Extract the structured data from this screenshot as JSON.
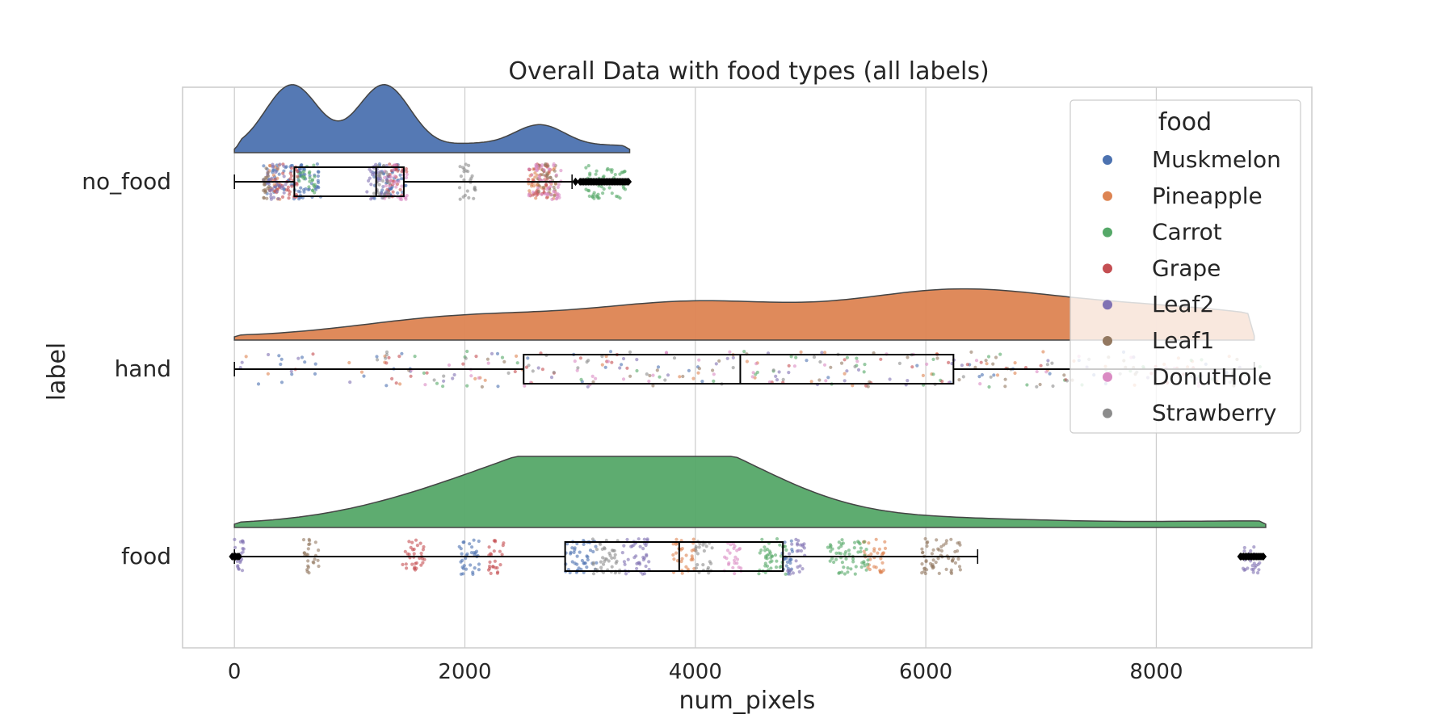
{
  "chart_data": {
    "type": "raincloud",
    "title": "Overall Data with food types (all labels)",
    "xlabel": "num_pixels",
    "ylabel": "label",
    "xlim": [
      -450,
      9350
    ],
    "xticks": [
      0,
      2000,
      4000,
      6000,
      8000
    ],
    "xtick_labels": [
      "0",
      "2000",
      "4000",
      "6000",
      "8000"
    ],
    "categories": [
      "no_food",
      "hand",
      "food"
    ],
    "grid": "vertical",
    "legend": {
      "title": "food",
      "placement": "top-right",
      "entries": [
        {
          "name": "Muskmelon",
          "color": "#4c72b0"
        },
        {
          "name": "Pineapple",
          "color": "#dd8452"
        },
        {
          "name": "Carrot",
          "color": "#55a868"
        },
        {
          "name": "Grape",
          "color": "#c44e52"
        },
        {
          "name": "Leaf2",
          "color": "#8172b3"
        },
        {
          "name": "Leaf1",
          "color": "#937860"
        },
        {
          "name": "DonutHole",
          "color": "#da8bc3"
        },
        {
          "name": "Strawberry",
          "color": "#8c8c8c"
        }
      ]
    },
    "cloud_colors": {
      "no_food": "#4c72b0",
      "hand": "#dd8452",
      "food": "#55a868"
    },
    "density_peaks": {
      "no_food": [
        [
          500,
          1.0
        ],
        [
          1300,
          1.0
        ],
        [
          2050,
          0.08
        ],
        [
          2650,
          0.38
        ],
        [
          3300,
          0.06
        ]
      ],
      "hand": [
        [
          2000,
          0.3
        ],
        [
          4000,
          0.5
        ],
        [
          6200,
          0.65
        ],
        [
          7800,
          0.3
        ],
        [
          8900,
          0.2
        ]
      ],
      "food": [
        [
          2100,
          0.45
        ],
        [
          3300,
          0.72
        ],
        [
          3950,
          0.72
        ],
        [
          6300,
          0.08
        ],
        [
          8900,
          0.05
        ]
      ]
    },
    "boxes": [
      {
        "label": "no_food",
        "whisker_low": 0,
        "q1": 520,
        "median": 1230,
        "q3": 1470,
        "whisker_high": 2930,
        "outlier_ranges": [
          [
            2960,
            2960
          ],
          [
            3000,
            3420
          ]
        ]
      },
      {
        "label": "hand",
        "whisker_low": 0,
        "q1": 2510,
        "median": 4390,
        "q3": 6240,
        "whisker_high": 8850,
        "outlier_ranges": []
      },
      {
        "label": "food",
        "whisker_low": 0,
        "q1": 2870,
        "median": 3860,
        "q3": 4760,
        "whisker_high": 6450,
        "outlier_ranges": [
          [
            -20,
            40
          ],
          [
            8730,
            8930
          ]
        ]
      }
    ],
    "point_clusters": [
      {
        "label": "no_food",
        "food": "Muskmelon",
        "ranges": [
          [
            250,
            600
          ],
          [
            550,
            750
          ],
          [
            1200,
            1500
          ]
        ]
      },
      {
        "label": "no_food",
        "food": "Pineapple",
        "ranges": [
          [
            300,
            400
          ],
          [
            2550,
            2800
          ]
        ]
      },
      {
        "label": "no_food",
        "food": "Carrot",
        "ranges": [
          [
            550,
            700
          ],
          [
            3050,
            3400
          ]
        ]
      },
      {
        "label": "no_food",
        "food": "Grape",
        "ranges": [
          [
            350,
            550
          ],
          [
            1300,
            1500
          ],
          [
            2550,
            2750
          ]
        ]
      },
      {
        "label": "no_food",
        "food": "Leaf2",
        "ranges": [
          [
            250,
            450
          ],
          [
            1150,
            1350
          ]
        ]
      },
      {
        "label": "no_food",
        "food": "Leaf1",
        "ranges": [
          [
            250,
            300
          ],
          [
            2600,
            2800
          ]
        ]
      },
      {
        "label": "no_food",
        "food": "DonutHole",
        "ranges": [
          [
            1300,
            1500
          ],
          [
            2550,
            2850
          ]
        ]
      },
      {
        "label": "no_food",
        "food": "Strawberry",
        "ranges": [
          [
            1200,
            1350
          ],
          [
            1950,
            2100
          ]
        ]
      },
      {
        "label": "hand",
        "food": "Muskmelon",
        "ranges": [
          [
            0,
            8900
          ]
        ]
      },
      {
        "label": "hand",
        "food": "Pineapple",
        "ranges": [
          [
            0,
            8900
          ]
        ]
      },
      {
        "label": "hand",
        "food": "Carrot",
        "ranges": [
          [
            1500,
            8900
          ]
        ]
      },
      {
        "label": "hand",
        "food": "Grape",
        "ranges": [
          [
            500,
            8500
          ]
        ]
      },
      {
        "label": "hand",
        "food": "Leaf2",
        "ranges": [
          [
            0,
            8900
          ]
        ]
      },
      {
        "label": "hand",
        "food": "Leaf1",
        "ranges": [
          [
            1500,
            8900
          ]
        ]
      },
      {
        "label": "hand",
        "food": "DonutHole",
        "ranges": [
          [
            1500,
            8500
          ]
        ]
      },
      {
        "label": "hand",
        "food": "Strawberry",
        "ranges": [
          [
            1000,
            8900
          ]
        ]
      },
      {
        "label": "food",
        "food": "Muskmelon",
        "ranges": [
          [
            1950,
            2150
          ],
          [
            2870,
            3150
          ],
          [
            4750,
            4850
          ]
        ]
      },
      {
        "label": "food",
        "food": "Pineapple",
        "ranges": [
          [
            3800,
            4000
          ],
          [
            5450,
            5650
          ]
        ]
      },
      {
        "label": "food",
        "food": "Carrot",
        "ranges": [
          [
            4550,
            4800
          ],
          [
            5150,
            5500
          ]
        ]
      },
      {
        "label": "food",
        "food": "Grape",
        "ranges": [
          [
            1450,
            1650
          ],
          [
            2200,
            2350
          ]
        ]
      },
      {
        "label": "food",
        "food": "Leaf2",
        "ranges": [
          [
            0,
            100
          ],
          [
            3350,
            3600
          ],
          [
            4800,
            4950
          ],
          [
            8750,
            8900
          ]
        ]
      },
      {
        "label": "food",
        "food": "Leaf1",
        "ranges": [
          [
            600,
            750
          ],
          [
            5950,
            6300
          ]
        ]
      },
      {
        "label": "food",
        "food": "DonutHole",
        "ranges": [
          [
            4250,
            4400
          ]
        ]
      },
      {
        "label": "food",
        "food": "Strawberry",
        "ranges": [
          [
            3100,
            3350
          ],
          [
            4000,
            4150
          ]
        ]
      }
    ]
  }
}
